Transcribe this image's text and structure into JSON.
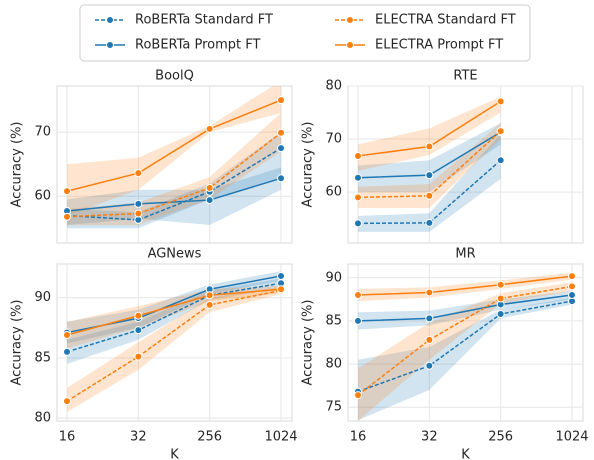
{
  "chart_data": [
    {
      "type": "line",
      "title": "BoolQ",
      "ylabel": "Accuracy (%)",
      "ylim": [
        52.7,
        77.2
      ],
      "yticks": [
        60,
        70
      ],
      "grid": true,
      "series": [
        {
          "name": "RoBERTa Standard FT",
          "color": "#1f77b4",
          "dashed": true,
          "values": [
            57,
            56.3,
            60.7,
            67.5
          ],
          "lower": [
            55,
            55,
            59.5,
            63
          ],
          "upper": [
            58,
            57.5,
            62,
            70
          ]
        },
        {
          "name": "RoBERTa Prompt FT",
          "color": "#1f77b4",
          "dashed": false,
          "values": [
            57.7,
            58.8,
            59.4,
            62.8
          ],
          "lower": [
            55.5,
            56.5,
            55.5,
            61
          ],
          "upper": [
            59.5,
            61,
            61,
            64.5
          ]
        },
        {
          "name": "ELECTRA Standard FT",
          "color": "#ff7f0e",
          "dashed": true,
          "values": [
            56.8,
            57.3,
            61.3,
            69.9
          ],
          "lower": [
            55.5,
            55.5,
            59.5,
            67
          ],
          "upper": [
            58,
            59,
            63,
            73
          ]
        },
        {
          "name": "ELECTRA Prompt FT",
          "color": "#ff7f0e",
          "dashed": false,
          "values": [
            60.8,
            63.6,
            70.5,
            75
          ],
          "lower": [
            57,
            61,
            70,
            73
          ],
          "upper": [
            65,
            66,
            71,
            78
          ]
        }
      ]
    },
    {
      "type": "line",
      "title": "RTE",
      "ylabel": "Accuracy (%)",
      "ylim": [
        50.4,
        80
      ],
      "yticks": [
        60,
        70,
        80
      ],
      "grid": true,
      "series": [
        {
          "name": "RoBERTa Standard FT",
          "color": "#1f77b4",
          "dashed": true,
          "values": [
            54.1,
            54.2,
            66,
            null
          ],
          "lower": [
            52.5,
            52.5,
            62.5,
            null
          ],
          "upper": [
            55.5,
            56,
            71,
            null
          ]
        },
        {
          "name": "RoBERTa Prompt FT",
          "color": "#1f77b4",
          "dashed": false,
          "values": [
            62.7,
            63.2,
            71.3,
            null
          ],
          "lower": [
            60,
            60,
            69,
            null
          ],
          "upper": [
            65,
            66,
            73,
            null
          ]
        },
        {
          "name": "ELECTRA Standard FT",
          "color": "#ff7f0e",
          "dashed": true,
          "values": [
            59,
            59.3,
            71.5,
            null
          ],
          "lower": [
            57,
            57,
            70,
            null
          ],
          "upper": [
            61,
            61.5,
            73,
            null
          ]
        },
        {
          "name": "ELECTRA Prompt FT",
          "color": "#ff7f0e",
          "dashed": false,
          "values": [
            66.8,
            68.6,
            77.1,
            null
          ],
          "lower": [
            64,
            67,
            75,
            null
          ],
          "upper": [
            69,
            72,
            78,
            null
          ]
        }
      ]
    },
    {
      "type": "line",
      "title": "AGNews",
      "ylabel": "Accuracy (%)",
      "xlabel": "K",
      "categories": [
        "16",
        "32",
        "256",
        "1024"
      ],
      "ylim": [
        79.75,
        92.8
      ],
      "yticks": [
        80,
        85,
        90
      ],
      "grid": true,
      "series": [
        {
          "name": "RoBERTa Standard FT",
          "color": "#1f77b4",
          "dashed": true,
          "values": [
            85.5,
            87.3,
            90.2,
            91.2
          ],
          "lower": [
            84.5,
            86.5,
            89.8,
            90.8
          ],
          "upper": [
            86.5,
            88,
            90.6,
            91.6
          ]
        },
        {
          "name": "RoBERTa Prompt FT",
          "color": "#1f77b4",
          "dashed": false,
          "values": [
            87.1,
            88.3,
            90.7,
            91.8
          ],
          "lower": [
            86.2,
            87.5,
            90.3,
            91.4
          ],
          "upper": [
            88,
            89,
            91.1,
            92.2
          ]
        },
        {
          "name": "ELECTRA Standard FT",
          "color": "#ff7f0e",
          "dashed": true,
          "values": [
            81.4,
            85.1,
            89.4,
            90.6
          ],
          "lower": [
            80.5,
            84,
            88.8,
            90.3
          ],
          "upper": [
            82.5,
            86.3,
            90,
            90.9
          ]
        },
        {
          "name": "ELECTRA Prompt FT",
          "color": "#ff7f0e",
          "dashed": false,
          "values": [
            86.9,
            88.5,
            90.2,
            90.7
          ],
          "lower": [
            85.8,
            87.5,
            89.7,
            90.4
          ],
          "upper": [
            88,
            89.3,
            90.7,
            91
          ]
        }
      ]
    },
    {
      "type": "line",
      "title": "MR",
      "ylabel": "Accuracy (%)",
      "xlabel": "K",
      "categories": [
        "16",
        "32",
        "256",
        "1024"
      ],
      "ylim": [
        73.4,
        91.6
      ],
      "yticks": [
        75,
        80,
        85,
        90
      ],
      "grid": true,
      "series": [
        {
          "name": "RoBERTa Standard FT",
          "color": "#1f77b4",
          "dashed": true,
          "values": [
            76.8,
            79.8,
            85.8,
            87.3
          ],
          "lower": [
            73.5,
            77,
            85.3,
            86.9
          ],
          "upper": [
            80.5,
            82,
            86.3,
            87.7
          ]
        },
        {
          "name": "RoBERTa Prompt FT",
          "color": "#1f77b4",
          "dashed": false,
          "values": [
            85,
            85.3,
            86.9,
            88
          ],
          "lower": [
            84,
            84.5,
            86.3,
            87.5
          ],
          "upper": [
            86,
            86.2,
            87.5,
            88.5
          ]
        },
        {
          "name": "ELECTRA Standard FT",
          "color": "#ff7f0e",
          "dashed": true,
          "values": [
            76.4,
            82.8,
            87.6,
            89
          ],
          "lower": [
            73.4,
            80.5,
            87,
            88.5
          ],
          "upper": [
            79.5,
            84.8,
            88.2,
            89.5
          ]
        },
        {
          "name": "ELECTRA Prompt FT",
          "color": "#ff7f0e",
          "dashed": false,
          "values": [
            88,
            88.3,
            89.2,
            90.2
          ],
          "lower": [
            87.3,
            87.7,
            88.7,
            89.8
          ],
          "upper": [
            88.7,
            88.9,
            89.7,
            90.6
          ]
        }
      ]
    }
  ]
}
